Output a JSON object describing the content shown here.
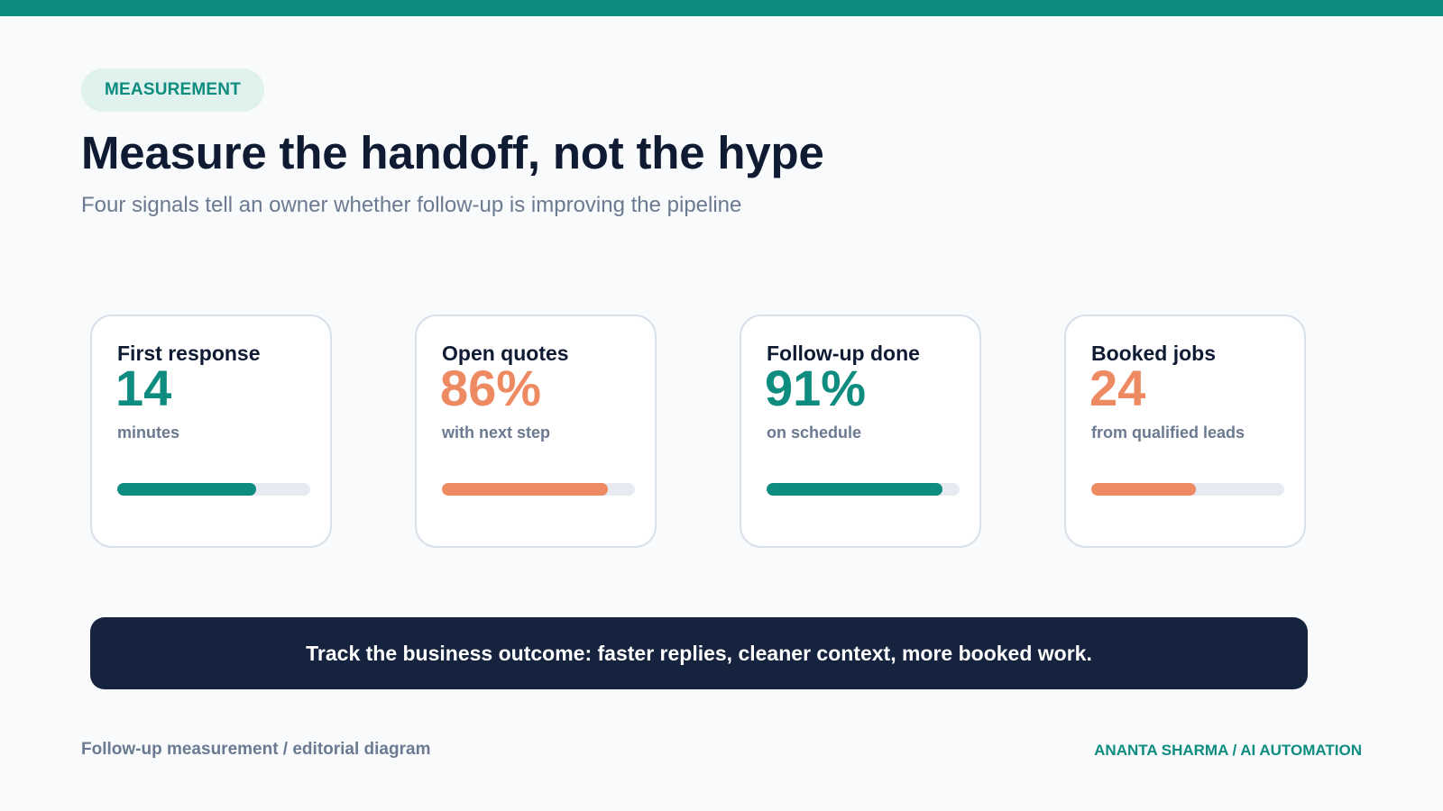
{
  "header": {
    "tag": "MEASUREMENT",
    "title": "Measure the handoff, not the hype",
    "subtitle": "Four signals tell an owner whether follow-up is improving the pipeline"
  },
  "colors": {
    "teal": "#0e8c80",
    "coral": "#ee8a62",
    "navy": "#16233f",
    "tag_bg": "#dff2ee",
    "track": "#e7ebf1"
  },
  "metrics": [
    {
      "label": "First response",
      "value": "14",
      "caption": "minutes",
      "progress": 0.72,
      "color": "#0e8c80"
    },
    {
      "label": "Open quotes",
      "value": "86%",
      "caption": "with next step",
      "progress": 0.86,
      "color": "#ee8a62"
    },
    {
      "label": "Follow-up done",
      "value": "91%",
      "caption": "on schedule",
      "progress": 0.91,
      "color": "#0e8c80"
    },
    {
      "label": "Booked jobs",
      "value": "24",
      "caption": "from qualified leads",
      "progress": 0.54,
      "color": "#ee8a62"
    }
  ],
  "banner": {
    "text": "Track the business outcome: faster replies, cleaner context, more booked work."
  },
  "footer": {
    "left": "Follow-up measurement / editorial diagram",
    "right": "ANANTA SHARMA / AI AUTOMATION"
  }
}
